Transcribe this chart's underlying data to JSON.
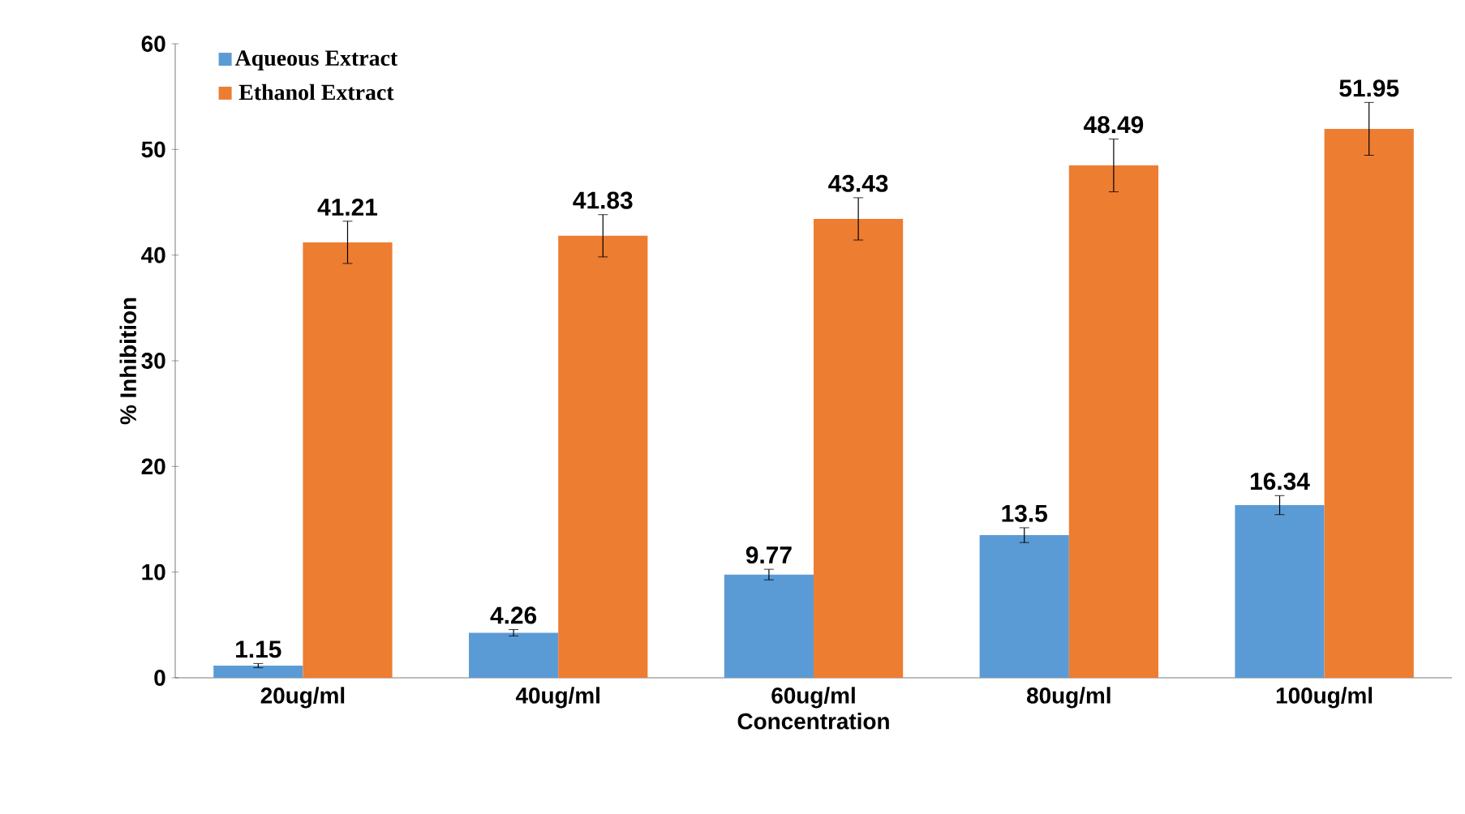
{
  "chart_data": {
    "type": "bar",
    "xlabel": "Concentration",
    "ylabel": "% Inhibition",
    "categories": [
      "20ug/ml",
      "40ug/ml",
      "60ug/ml",
      "80ug/ml",
      "100ug/ml"
    ],
    "series": [
      {
        "name": "Aqueous Extract",
        "color": "#5b9bd5",
        "values": [
          1.15,
          4.26,
          9.77,
          13.5,
          16.34
        ],
        "errors": [
          0.2,
          0.3,
          0.5,
          0.7,
          0.9
        ]
      },
      {
        "name": "Ethanol Extract",
        "color": "#ed7d31",
        "values": [
          41.21,
          41.83,
          43.43,
          48.49,
          51.95
        ],
        "errors": [
          2,
          2,
          2,
          2.5,
          2.5
        ]
      }
    ],
    "ylim": [
      0,
      60
    ],
    "yticks": [
      0,
      10,
      20,
      30,
      40,
      50,
      60
    ],
    "data_labels": true,
    "legend": "top left",
    "grid": false
  }
}
